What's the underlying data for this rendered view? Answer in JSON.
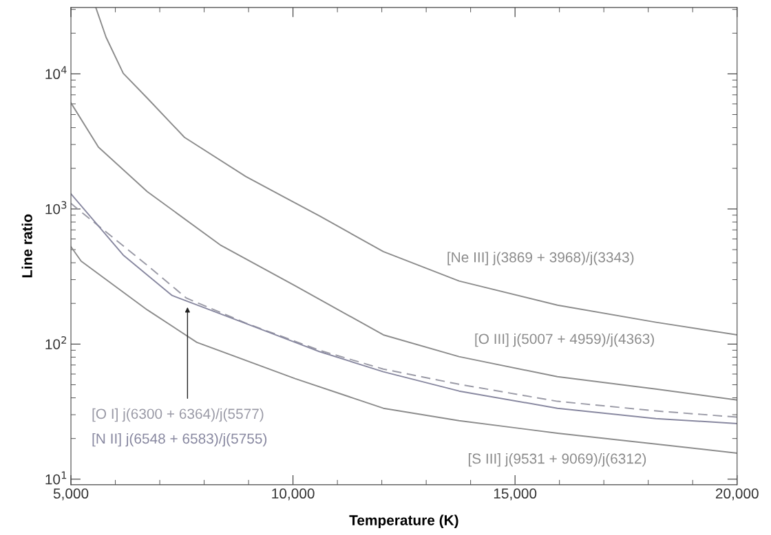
{
  "chart_data": {
    "type": "line",
    "xlabel": "Temperature (K)",
    "ylabel": "Line ratio",
    "log": "y",
    "xlim": [
      5000,
      20000
    ],
    "xticks": [
      {
        "value": 5000,
        "label": "5,000"
      },
      {
        "value": 6000,
        "label": null
      },
      {
        "value": 7000,
        "label": null
      },
      {
        "value": 8000,
        "label": null
      },
      {
        "value": 9000,
        "label": null
      },
      {
        "value": 10000,
        "label": "10,000"
      },
      {
        "value": 11000,
        "label": null
      },
      {
        "value": 12000,
        "label": null
      },
      {
        "value": 13000,
        "label": null
      },
      {
        "value": 14000,
        "label": null
      },
      {
        "value": 15000,
        "label": "15,000"
      },
      {
        "value": 16000,
        "label": null
      },
      {
        "value": 17000,
        "label": null
      },
      {
        "value": 18000,
        "label": null
      },
      {
        "value": 19000,
        "label": null
      },
      {
        "value": 20000,
        "label": "20,000"
      }
    ],
    "ylim": [
      9.1,
      31000
    ],
    "yticks": [
      {
        "value": 10,
        "label": "10$^{1}$"
      },
      {
        "value": 100,
        "label": "10$^{2}$"
      },
      {
        "value": 1000,
        "label": "10$^{3}$"
      },
      {
        "value": 10000,
        "label": "10$^{4}$"
      }
    ],
    "grid": false,
    "legend": false,
    "marker": "none",
    "series": [
      {
        "name": "[Ne III] j(3869 + 3968)/j(3343)",
        "color": "#8c8c8c",
        "line_style": "solid",
        "x": [
          5560,
          5790,
          6178,
          6720,
          7557,
          8936,
          9773,
          10594,
          12035,
          13740,
          15955,
          18172,
          20000
        ],
        "values": [
          31000,
          18700,
          10100,
          6610,
          3390,
          1740,
          1239,
          889,
          484,
          293,
          194,
          145,
          117
        ]
      },
      {
        "name": "[O III] j(5007 + 4959)/j(4363)",
        "color": "#8c8c8c",
        "line_style": "solid",
        "x": [
          5000,
          5620,
          6720,
          8380,
          10050,
          12035,
          13740,
          15955,
          18172,
          20000
        ],
        "values": [
          6100,
          2870,
          1343,
          537,
          270,
          117,
          80.7,
          57.4,
          46.5,
          38.5
        ]
      },
      {
        "name": "[O I] j(6300 + 6364)/j(5577)",
        "color": "#9a9aa6",
        "line_style": "dashed",
        "x": [
          5000,
          5280,
          6720,
          7600,
          8936,
          10594,
          12035,
          13740,
          15955,
          18172,
          20000
        ],
        "values": [
          1100,
          923,
          383,
          219,
          143,
          90,
          65.3,
          50.4,
          37.7,
          32,
          28.8
        ]
      },
      {
        "name": "[N II] j(6548 + 6583)/j(5755)",
        "color": "#8888a0",
        "line_style": "solid",
        "x": [
          5000,
          6178,
          7278,
          8936,
          10594,
          12035,
          13740,
          15955,
          18172,
          20000
        ],
        "values": [
          1295,
          456,
          229,
          142,
          88,
          62.4,
          44.9,
          33.5,
          28.1,
          25.8
        ]
      },
      {
        "name": "[S III] j(9531 + 9069)/j(6312)",
        "color": "#8c8c8c",
        "line_style": "solid",
        "x": [
          5000,
          5230,
          6720,
          7836,
          10050,
          12035,
          13740,
          15955,
          18172,
          20000
        ],
        "values": [
          526,
          411,
          179,
          103,
          55.5,
          33.5,
          27.1,
          21.9,
          18.2,
          15.6
        ]
      }
    ]
  }
}
